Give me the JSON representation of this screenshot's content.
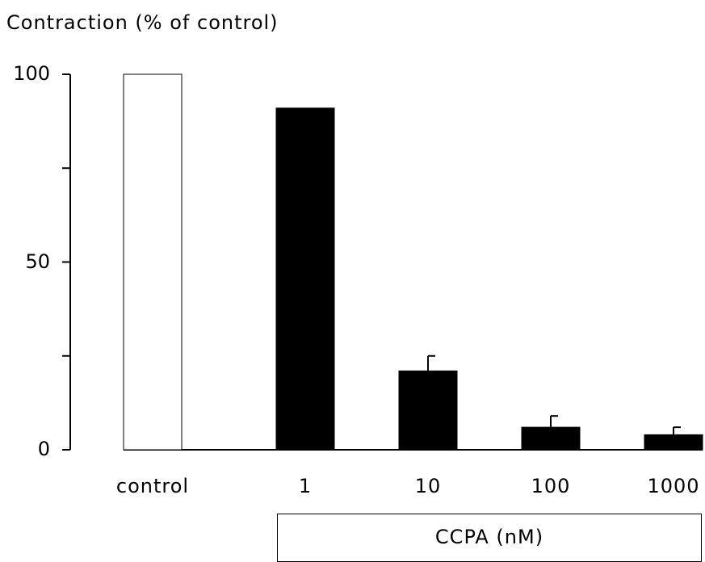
{
  "chart_data": {
    "type": "bar",
    "ylabel": "Contraction (% of control)",
    "xlabel": "",
    "ylim": [
      0,
      100
    ],
    "yticks": [
      0,
      50,
      100
    ],
    "categories": [
      "control",
      "1",
      "10",
      "100",
      "1000"
    ],
    "values": [
      100,
      91,
      21,
      6,
      4
    ],
    "errors": [
      0,
      0,
      4,
      3,
      2
    ],
    "fill_colors": [
      "#ffffff",
      "#000000",
      "#000000",
      "#000000",
      "#000000"
    ],
    "group_label": "CCPA (nM)",
    "grid": false,
    "legend": "none"
  }
}
